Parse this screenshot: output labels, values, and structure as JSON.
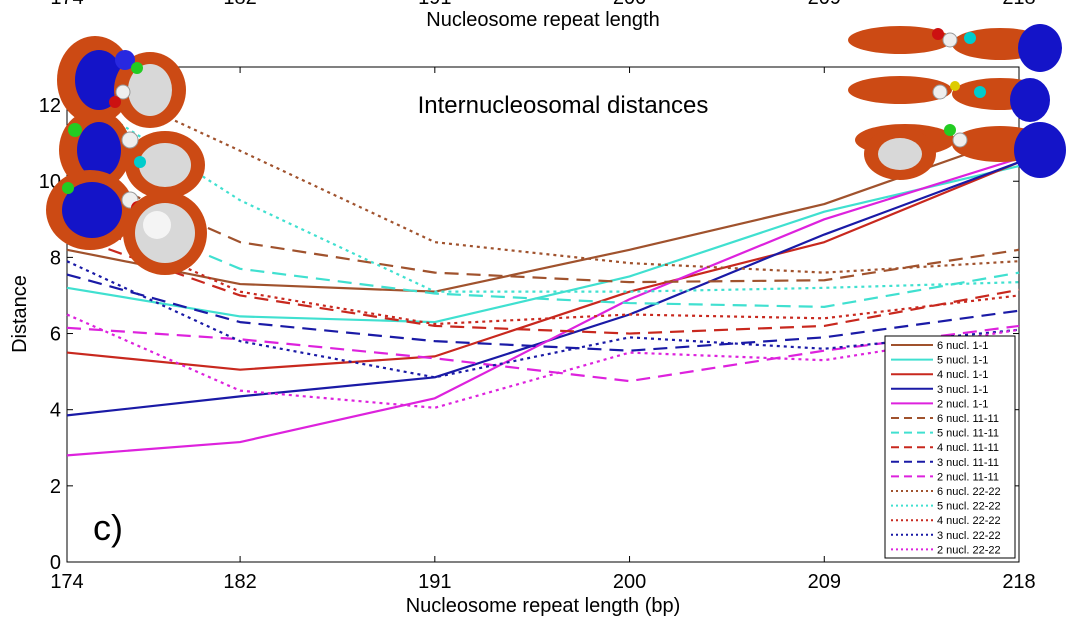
{
  "chart_data": {
    "type": "line",
    "title": "Internucleosomal distances",
    "panel_label": "c)",
    "xlabel": "Nucleosome repeat length (bp)",
    "xlabel_top": "Nucleosome repeat length",
    "ylabel": "Distance",
    "x": [
      174,
      182,
      191,
      200,
      209,
      218
    ],
    "xlim": [
      174,
      218
    ],
    "ylim": [
      0,
      13
    ],
    "x_ticks": [
      174,
      182,
      191,
      200,
      209,
      218
    ],
    "y_ticks": [
      0,
      2,
      4,
      6,
      8,
      10,
      12
    ],
    "grid": false,
    "legend_position": "bottom-right",
    "series": [
      {
        "name": "6 nucl.   1-1",
        "color": "#a0522d",
        "style": "solid",
        "values": [
          8.2,
          7.3,
          7.1,
          8.2,
          9.4,
          11.2
        ]
      },
      {
        "name": "5 nucl.   1-1",
        "color": "#40e0d0",
        "style": "solid",
        "values": [
          7.2,
          6.45,
          6.3,
          7.5,
          9.2,
          10.4
        ]
      },
      {
        "name": "4 nucl.   1-1",
        "color": "#c8281e",
        "style": "solid",
        "values": [
          5.5,
          5.05,
          5.4,
          7.1,
          8.4,
          10.5
        ]
      },
      {
        "name": "3 nucl.   1-1",
        "color": "#1a1aa6",
        "style": "solid",
        "values": [
          3.85,
          4.35,
          4.85,
          6.5,
          8.6,
          10.5
        ]
      },
      {
        "name": "2 nucl.   1-1",
        "color": "#dd22dd",
        "style": "solid",
        "values": [
          2.8,
          3.15,
          4.3,
          6.9,
          9.0,
          10.6
        ]
      },
      {
        "name": "6 nucl. 11-11",
        "color": "#a0522d",
        "style": "dashed",
        "values": [
          10.4,
          8.4,
          7.6,
          7.35,
          7.4,
          8.2
        ]
      },
      {
        "name": "5 nucl. 11-11",
        "color": "#40e0d0",
        "style": "dashed",
        "values": [
          9.6,
          7.7,
          7.05,
          6.8,
          6.7,
          7.6
        ]
      },
      {
        "name": "4 nucl. 11-11",
        "color": "#c8281e",
        "style": "dashed",
        "values": [
          8.6,
          7.0,
          6.2,
          6.0,
          6.2,
          7.15
        ]
      },
      {
        "name": "3 nucl. 11-11",
        "color": "#1a1aa6",
        "style": "dashed",
        "values": [
          7.55,
          6.3,
          5.8,
          5.55,
          5.9,
          6.6
        ]
      },
      {
        "name": "2 nucl. 11-11",
        "color": "#dd22dd",
        "style": "dashed",
        "values": [
          6.15,
          5.85,
          5.35,
          4.75,
          5.55,
          6.2
        ]
      },
      {
        "name": "6 nucl. 22-22",
        "color": "#a0522d",
        "style": "dotted",
        "values": [
          12.9,
          10.8,
          8.4,
          7.85,
          7.6,
          7.9
        ]
      },
      {
        "name": "5 nucl. 22-22",
        "color": "#40e0d0",
        "style": "dotted",
        "values": [
          12.4,
          9.5,
          7.1,
          7.1,
          7.2,
          7.35
        ]
      },
      {
        "name": "4 nucl. 22-22",
        "color": "#c8281e",
        "style": "dotted",
        "values": [
          9.1,
          7.1,
          6.25,
          6.5,
          6.4,
          7.0
        ]
      },
      {
        "name": "3 nucl. 22-22",
        "color": "#1a1aa6",
        "style": "dotted",
        "values": [
          7.9,
          5.8,
          4.85,
          5.9,
          5.6,
          6.1
        ]
      },
      {
        "name": "2 nucl. 22-22",
        "color": "#dd22dd",
        "style": "dotted",
        "values": [
          6.5,
          4.5,
          4.05,
          5.5,
          5.3,
          6.1
        ]
      }
    ]
  }
}
